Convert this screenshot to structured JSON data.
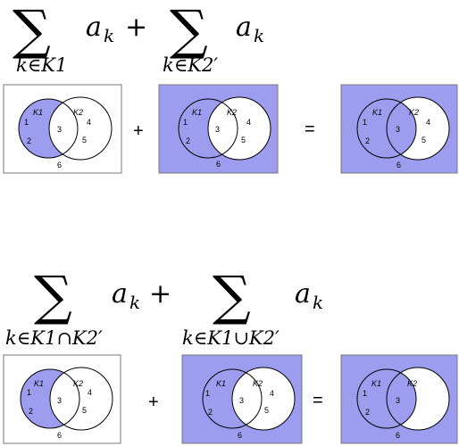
{
  "colors": {
    "fill": "#9d9df0",
    "border": "#777777",
    "circle": "#000000",
    "background": "#ffffff"
  },
  "top": {
    "term1": {
      "sigma": "∑",
      "subscript": "k∈K1",
      "summand": "a",
      "summand_sub": "k"
    },
    "plus": "+",
    "term2": {
      "sigma": "∑",
      "subscript": "k∈K2′",
      "summand": "a",
      "summand_sub": "k"
    }
  },
  "bottom": {
    "term1": {
      "sigma": "∑",
      "subscript": "k∈K1∩K2′",
      "summand": "a",
      "summand_sub": "k"
    },
    "plus": "+",
    "term2": {
      "sigma": "∑",
      "subscript": "k∈K1∪K2′",
      "summand": "a",
      "summand_sub": "k"
    }
  },
  "venn_labels": {
    "set1": "K1",
    "set2": "K2",
    "r1": "1",
    "r2": "2",
    "r3": "3",
    "r4": "4",
    "r5": "5",
    "r6": "6"
  },
  "operators": {
    "plus": "+",
    "equals": "="
  },
  "diagrams": [
    {
      "name": "top-left",
      "shading": "K1"
    },
    {
      "name": "top-middle",
      "shading": "complement of K2"
    },
    {
      "name": "top-right",
      "shading": "complement of (K2 minus K1)"
    },
    {
      "name": "bottom-left",
      "shading": "K1 minus K2"
    },
    {
      "name": "bottom-middle",
      "shading": "complement of K2"
    },
    {
      "name": "bottom-right",
      "shading": "complement of (K2 minus K1)"
    }
  ]
}
